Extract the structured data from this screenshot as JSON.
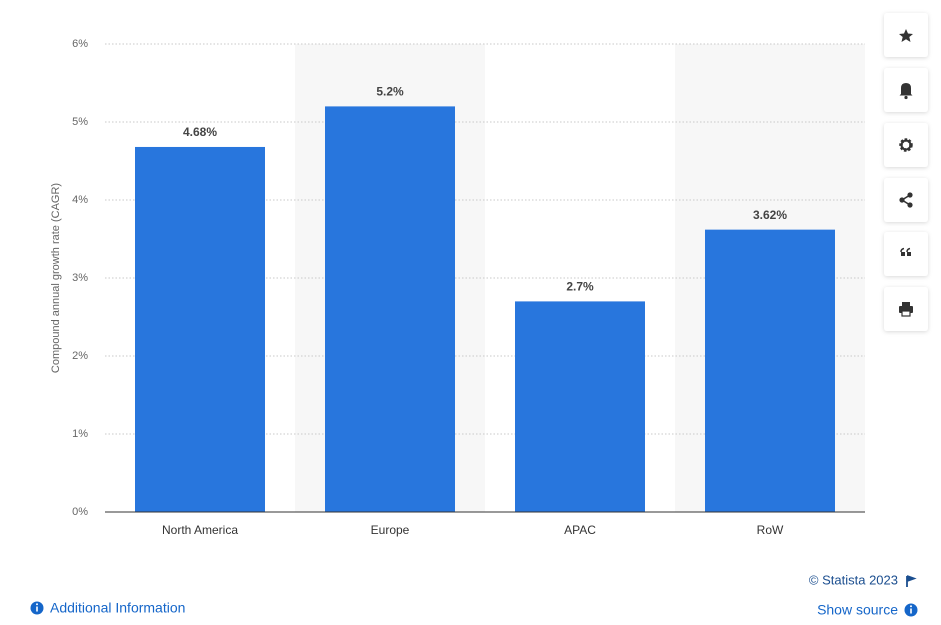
{
  "chart_data": {
    "type": "bar",
    "y_axis_label": "Compound annual growth rate (CAGR)",
    "categories": [
      "North America",
      "Europe",
      "APAC",
      "RoW"
    ],
    "values": [
      4.68,
      5.2,
      2.7,
      3.62
    ],
    "value_labels": [
      "4.68%",
      "5.2%",
      "2.7%",
      "3.62%"
    ],
    "color": "#2876dd",
    "ylim": [
      0,
      6
    ],
    "yticks": [
      {
        "value": 0,
        "label": "0%"
      },
      {
        "value": 1,
        "label": "1%"
      },
      {
        "value": 2,
        "label": "2%"
      },
      {
        "value": 3,
        "label": "3%"
      },
      {
        "value": 4,
        "label": "4%"
      },
      {
        "value": 5,
        "label": "5%"
      },
      {
        "value": 6,
        "label": "6%"
      }
    ],
    "grid": true
  },
  "footer": {
    "copyright": "© Statista 2023",
    "additional_information": "Additional Information",
    "show_source": "Show source"
  }
}
